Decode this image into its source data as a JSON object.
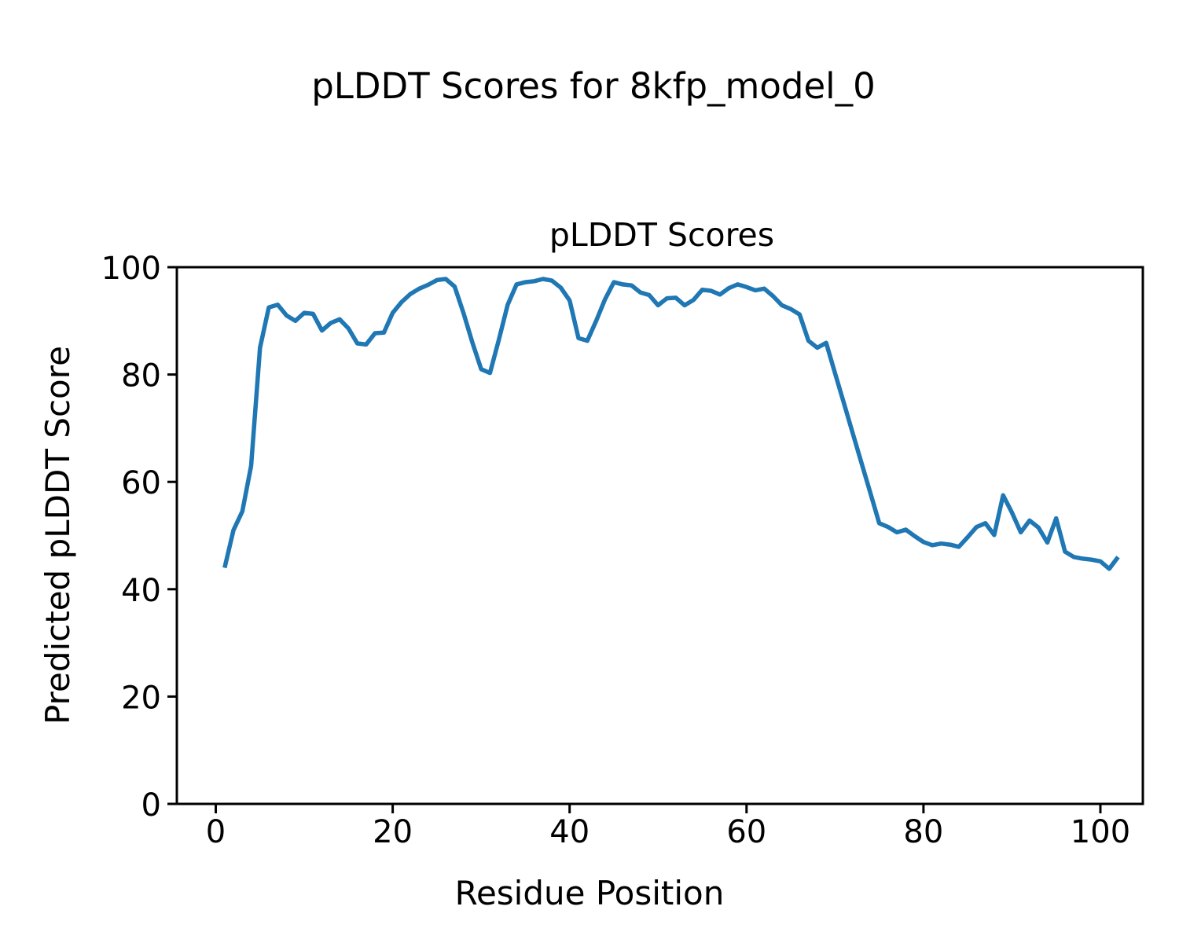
{
  "chart_data": {
    "type": "line",
    "suptitle": "pLDDT Scores for 8kfp_model_0",
    "title": "pLDDT Scores",
    "xlabel": "Residue Position",
    "ylabel": "Predicted pLDDT Score",
    "line_color": "#1f77b4",
    "background_color": "#ffffff",
    "grid": false,
    "legend": "none",
    "xlim": [
      -4.4,
      104.8
    ],
    "ylim": [
      0,
      100
    ],
    "xticks": [
      0,
      20,
      40,
      60,
      80,
      100
    ],
    "yticks": [
      0,
      20,
      40,
      60,
      80,
      100
    ],
    "x": [
      1,
      2,
      3,
      4,
      5,
      6,
      7,
      8,
      9,
      10,
      11,
      12,
      13,
      14,
      15,
      16,
      17,
      18,
      19,
      20,
      21,
      22,
      23,
      24,
      25,
      26,
      27,
      28,
      29,
      30,
      31,
      32,
      33,
      34,
      35,
      36,
      37,
      38,
      39,
      40,
      41,
      42,
      43,
      44,
      45,
      46,
      47,
      48,
      49,
      50,
      51,
      52,
      53,
      54,
      55,
      56,
      57,
      58,
      59,
      60,
      61,
      62,
      63,
      64,
      65,
      66,
      67,
      68,
      69,
      70,
      71,
      72,
      73,
      74,
      75,
      76,
      77,
      78,
      79,
      80,
      81,
      82,
      83,
      84,
      85,
      86,
      87,
      88,
      89,
      90,
      91,
      92,
      93,
      94,
      95,
      96,
      97,
      98,
      99,
      100,
      101,
      102
    ],
    "values": [
      44.0,
      51.0,
      54.5,
      63.0,
      85.0,
      92.5,
      93.0,
      91.0,
      90.0,
      91.5,
      91.3,
      88.2,
      89.6,
      90.3,
      88.6,
      85.8,
      85.6,
      87.7,
      87.8,
      91.5,
      93.5,
      95.0,
      96.0,
      96.7,
      97.6,
      97.8,
      96.4,
      91.5,
      86.0,
      81.0,
      80.3,
      86.5,
      93.0,
      96.8,
      97.2,
      97.4,
      97.8,
      97.5,
      96.2,
      93.8,
      86.8,
      86.3,
      90.0,
      94.0,
      97.2,
      96.8,
      96.6,
      95.3,
      94.8,
      92.9,
      94.2,
      94.3,
      92.9,
      93.9,
      95.8,
      95.6,
      94.9,
      96.1,
      96.8,
      96.3,
      95.7,
      96.0,
      94.6,
      92.9,
      92.2,
      91.2,
      86.3,
      85.0,
      85.9,
      80.3,
      74.7,
      69.1,
      63.5,
      57.9,
      52.3,
      51.6,
      50.6,
      51.1,
      49.9,
      48.8,
      48.2,
      48.5,
      48.3,
      47.9,
      49.7,
      51.6,
      52.3,
      50.1,
      57.5,
      54.3,
      50.6,
      52.8,
      51.5,
      48.7,
      53.2,
      47.0,
      46.0,
      45.7,
      45.5,
      45.2,
      43.8,
      46.0
    ]
  }
}
